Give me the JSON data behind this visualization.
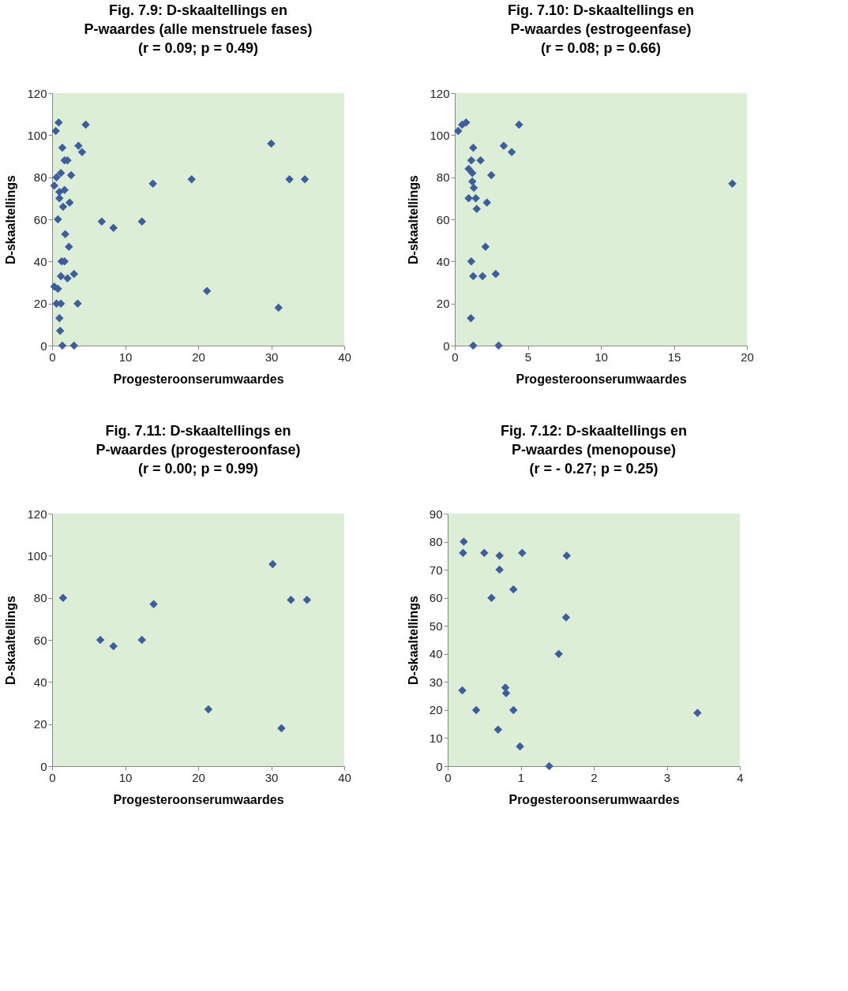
{
  "chart_data": [
    {
      "type": "scatter",
      "title": "Fig. 7.9: D-skaaltellings en\nP-waardes (alle menstruele fases)\n(r = 0.09; p = 0.49)",
      "xlabel": "Progesteroonserumwaardes",
      "ylabel": "D-skaaltellings",
      "marker": "diamond",
      "grid": false,
      "xlim": [
        0,
        40
      ],
      "xticks": [
        0,
        10,
        20,
        30,
        40
      ],
      "ylim": [
        0,
        120
      ],
      "yticks": [
        0,
        20,
        40,
        60,
        80,
        100,
        120
      ],
      "series": [
        {
          "color": "#3d5e9e",
          "x": [
            0.9,
            0.5,
            4.6,
            30.0,
            1.4,
            3.6,
            4.1,
            1.7,
            2.1,
            2.6,
            0.6,
            1.2,
            0.3,
            1.0,
            1.7,
            2.4,
            1.0,
            1.5,
            0.8,
            13.8,
            19.1,
            32.5,
            34.6,
            6.8,
            8.4,
            12.3,
            1.8,
            2.3,
            1.3,
            1.7,
            1.2,
            2.1,
            3.0,
            0.3,
            0.8,
            0.6,
            1.2,
            3.5,
            21.2,
            31.0,
            1.0,
            1.1,
            1.4,
            3.0
          ],
          "values": [
            106,
            102,
            105,
            96,
            94,
            95,
            92,
            88,
            88,
            81,
            80,
            82,
            76,
            73,
            74,
            68,
            70,
            66,
            60,
            77,
            79,
            79,
            79,
            59,
            56,
            59,
            53,
            47,
            40,
            40,
            33,
            32,
            34,
            28,
            27,
            20,
            20,
            20,
            26,
            18,
            13,
            7,
            0,
            0
          ]
        }
      ]
    },
    {
      "type": "scatter",
      "title": "Fig. 7.10: D-skaaltellings en\nP-waardes (estrogeenfase)\n(r = 0.08; p = 0.66)",
      "xlabel": "Progesteroonserumwaardes",
      "ylabel": "D-skaaltellings",
      "marker": "diamond",
      "grid": false,
      "xlim": [
        0,
        20
      ],
      "xticks": [
        0,
        5,
        10,
        15,
        20
      ],
      "ylim": [
        0,
        120
      ],
      "yticks": [
        0,
        20,
        40,
        60,
        80,
        100,
        120
      ],
      "series": [
        {
          "color": "#3d5e9e",
          "x": [
            0.23,
            0.5,
            0.77,
            4.4,
            1.26,
            3.35,
            3.9,
            1.13,
            1.76,
            0.95,
            1.2,
            2.5,
            1.2,
            1.3,
            0.95,
            1.44,
            2.2,
            1.5,
            19.0,
            2.1,
            1.13,
            1.26,
            1.9,
            2.8,
            1.1,
            1.26,
            3.0
          ],
          "values": [
            102,
            105,
            106,
            105,
            94,
            95,
            92,
            88,
            88,
            84,
            82,
            81,
            78,
            75,
            70,
            70,
            68,
            65,
            77,
            47,
            40,
            33,
            33,
            34,
            13,
            0,
            0
          ]
        }
      ]
    },
    {
      "type": "scatter",
      "title": "Fig. 7.11: D-skaaltellings en\nP-waardes (progesteroonfase)\n(r = 0.00; p = 0.99)",
      "xlabel": "Progesteroonserumwaardes",
      "ylabel": "D-skaaltellings",
      "marker": "diamond",
      "grid": false,
      "xlim": [
        0,
        40
      ],
      "xticks": [
        0,
        10,
        20,
        30,
        40
      ],
      "ylim": [
        0,
        120
      ],
      "yticks": [
        0,
        20,
        40,
        60,
        80,
        100,
        120
      ],
      "series": [
        {
          "color": "#3d5e9e",
          "x": [
            1.5,
            6.6,
            8.4,
            12.3,
            13.9,
            21.4,
            30.2,
            32.7,
            34.9,
            31.4
          ],
          "values": [
            80,
            60,
            57,
            60,
            77,
            27,
            96,
            79,
            79,
            18
          ]
        }
      ]
    },
    {
      "type": "scatter",
      "title": "Fig. 7.12: D-skaaltellings en\nP-waardes (menopouse)\n(r = - 0.27; p = 0.25)",
      "xlabel": "Progesteroonserumwaardes",
      "ylabel": "D-skaaltellings",
      "marker": "diamond",
      "grid": false,
      "xlim": [
        0,
        4
      ],
      "xticks": [
        0,
        1,
        2,
        3,
        4
      ],
      "ylim": [
        0,
        90
      ],
      "yticks": [
        0,
        10,
        20,
        30,
        40,
        50,
        60,
        70,
        80,
        90
      ],
      "series": [
        {
          "color": "#3d5e9e",
          "x": [
            0.22,
            0.21,
            0.5,
            0.71,
            1.02,
            1.63,
            0.71,
            0.9,
            0.6,
            1.62,
            1.52,
            0.2,
            0.79,
            0.8,
            0.39,
            0.9,
            3.42,
            0.69,
            0.99,
            1.39
          ],
          "values": [
            80,
            76,
            76,
            75,
            76,
            75,
            70,
            63,
            60,
            53,
            40,
            27,
            28,
            26,
            20,
            20,
            19,
            13,
            7,
            0
          ]
        }
      ]
    }
  ]
}
